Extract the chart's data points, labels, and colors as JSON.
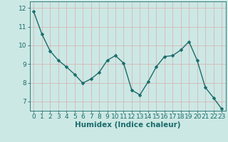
{
  "x": [
    0,
    1,
    2,
    3,
    4,
    5,
    6,
    7,
    8,
    9,
    10,
    11,
    12,
    13,
    14,
    15,
    16,
    17,
    18,
    19,
    20,
    21,
    22,
    23
  ],
  "y": [
    11.8,
    10.6,
    9.7,
    9.2,
    8.85,
    8.45,
    7.98,
    8.2,
    8.55,
    9.2,
    9.45,
    9.05,
    7.6,
    7.35,
    8.05,
    8.85,
    9.4,
    9.45,
    9.75,
    10.2,
    9.2,
    7.75,
    7.2,
    6.6
  ],
  "line_color": "#1a6b6b",
  "marker": "D",
  "marker_size": 2.5,
  "bg_color": "#cce8e4",
  "grid_color": "#c0d8d4",
  "xlabel": "Humidex (Indice chaleur)",
  "ylim": [
    6.5,
    12.35
  ],
  "xlim": [
    -0.5,
    23.5
  ],
  "yticks": [
    7,
    8,
    9,
    10,
    11,
    12
  ],
  "xticks": [
    0,
    1,
    2,
    3,
    4,
    5,
    6,
    7,
    8,
    9,
    10,
    11,
    12,
    13,
    14,
    15,
    16,
    17,
    18,
    19,
    20,
    21,
    22,
    23
  ],
  "tick_color": "#1a6b6b",
  "label_color": "#1a6b6b",
  "font_size_xlabel": 7.5,
  "font_size_ticks": 6.5
}
